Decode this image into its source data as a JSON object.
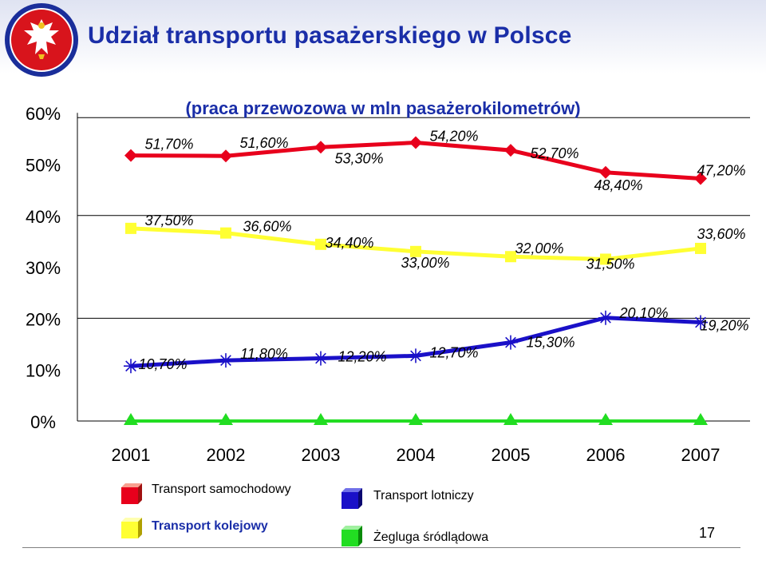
{
  "slide": {
    "title": "Udział transportu pasażerskiego  w Polsce",
    "page_number": "17"
  },
  "colors": {
    "road": "#e8001c",
    "rail": "#ffff33",
    "air": "#1a10c8",
    "water": "#22dd22",
    "title": "#1a2ea8"
  },
  "legend": {
    "road": "Transport samochodowy",
    "air": "Transport lotniczy",
    "rail": "Transport kolejowy",
    "water": "Żegluga śródlądowa"
  },
  "chart_data": {
    "type": "line",
    "title": "(praca przewozowa w mln pasażerokilometrów)",
    "categories": [
      "2001",
      "2002",
      "2003",
      "2004",
      "2005",
      "2006",
      "2007"
    ],
    "y_ticks": [
      "0%",
      "10%",
      "20%",
      "30%",
      "40%",
      "50%",
      "60%"
    ],
    "ylim": [
      0,
      60
    ],
    "grid": "horizontal gaps between plotted bands",
    "legend_position": "bottom",
    "series": [
      {
        "name": "Transport samochodowy",
        "key": "road",
        "marker": "diamond",
        "values": [
          51.7,
          51.6,
          53.3,
          54.2,
          52.7,
          48.4,
          47.2
        ],
        "labels": [
          "51,70%",
          "51,60%",
          "53,30%",
          "54,20%",
          "52,70%",
          "48,40%",
          "47,20%"
        ]
      },
      {
        "name": "Transport kolejowy",
        "key": "rail",
        "marker": "square",
        "values": [
          37.5,
          36.6,
          34.4,
          33.0,
          32.0,
          31.5,
          33.6
        ],
        "labels": [
          "37,50%",
          "36,60%",
          "34,40%",
          "33,00%",
          "32,00%",
          "31,50%",
          "33,60%"
        ]
      },
      {
        "name": "Transport lotniczy",
        "key": "air",
        "marker": "star",
        "values": [
          10.7,
          11.8,
          12.2,
          12.7,
          15.3,
          20.1,
          19.2
        ],
        "labels": [
          "10,70%",
          "11,80%",
          "12,20%",
          "12,70%",
          "15,30%",
          "20,10%",
          "19,20%"
        ]
      },
      {
        "name": "Żegluga śródlądowa",
        "key": "water",
        "marker": "triangle",
        "values": [
          0,
          0,
          0,
          0,
          0,
          0,
          0
        ],
        "labels": []
      }
    ]
  }
}
